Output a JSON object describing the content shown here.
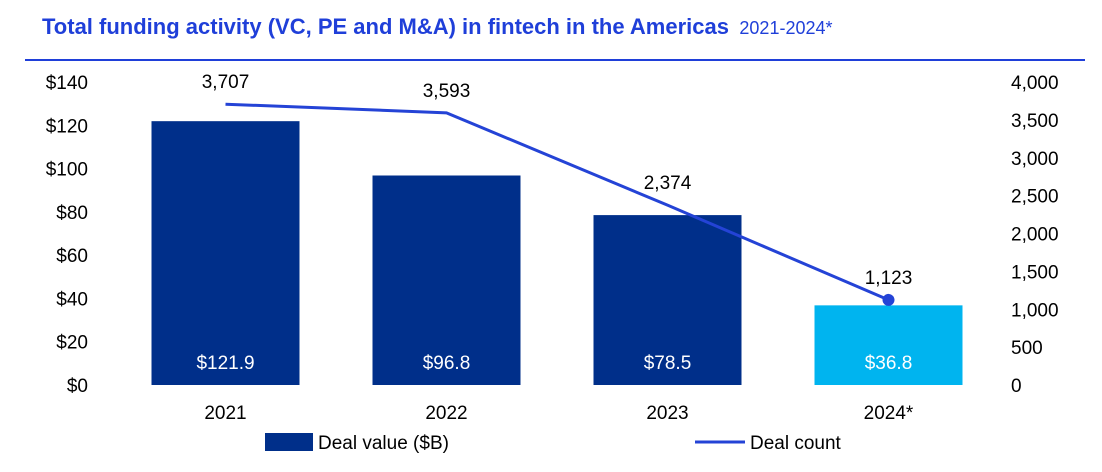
{
  "chart_data": {
    "type": "bar",
    "title": "Total funding activity (VC, PE and M&A) in fintech in the Americas",
    "subtitle": "2021-2024*",
    "categories": [
      "2021",
      "2022",
      "2023",
      "2024*"
    ],
    "series": [
      {
        "name": "Deal value ($B)",
        "type": "bar",
        "axis": "left",
        "values": [
          121.9,
          96.8,
          78.5,
          36.8
        ],
        "labels": [
          "$121.9",
          "$96.8",
          "$78.5",
          "$36.8"
        ],
        "colors": [
          "#002f8a",
          "#002f8a",
          "#002f8a",
          "#00b4ef"
        ]
      },
      {
        "name": "Deal count",
        "type": "line",
        "axis": "right",
        "values": [
          3707,
          3593,
          2374,
          1123
        ],
        "labels": [
          "3,707",
          "3,593",
          "2,374",
          "1,123"
        ],
        "color": "#2443d6"
      }
    ],
    "y_left": {
      "lim": [
        0,
        140
      ],
      "ticks": [
        0,
        20,
        40,
        60,
        80,
        100,
        120,
        140
      ],
      "tick_labels": [
        "$0",
        "$20",
        "$40",
        "$60",
        "$80",
        "$100",
        "$120",
        "$140"
      ]
    },
    "y_right": {
      "lim": [
        0,
        4000
      ],
      "ticks": [
        0,
        500,
        1000,
        1500,
        2000,
        2500,
        3000,
        3500,
        4000
      ],
      "tick_labels": [
        "0",
        "500",
        "1,000",
        "1,500",
        "2,000",
        "2,500",
        "3,000",
        "3,500",
        "4,000"
      ]
    },
    "grid": false,
    "legend_position": "bottom"
  }
}
